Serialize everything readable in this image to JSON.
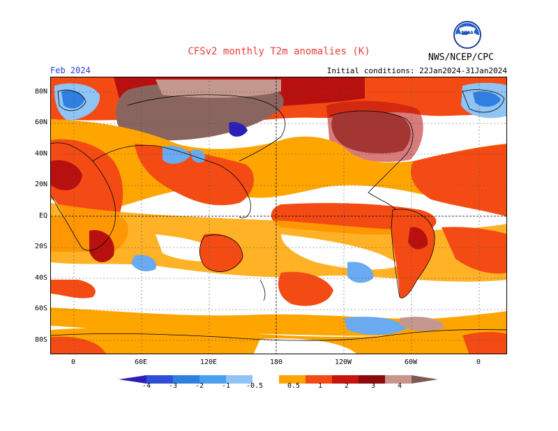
{
  "header": {
    "title": "CFSv2 monthly T2m anomalies (K)",
    "month": "Feb 2024",
    "initial_conditions": "Initial conditions: 22Jan2024-31Jan2024",
    "agency": "NWS/NCEP/CPC",
    "logo_text": "NOAA"
  },
  "map": {
    "lat_labels": [
      "80N",
      "60N",
      "40N",
      "20N",
      "EQ",
      "20S",
      "40S",
      "60S",
      "80S"
    ],
    "lon_labels": [
      "0",
      "60E",
      "120E",
      "180",
      "120W",
      "60W",
      "0"
    ]
  },
  "legend": {
    "labels": [
      "-4",
      "-3",
      "-2",
      "-1",
      "-0.5",
      "0.5",
      "1",
      "2",
      "3",
      "4"
    ],
    "colors": [
      "#2a20b8",
      "#2f4fd6",
      "#2f7fe0",
      "#4aa0ee",
      "#8fc4f4",
      "#ffffff",
      "#ffa500",
      "#f44b14",
      "#c7140f",
      "#8c0a0a",
      "#c7958a",
      "#7d5a52"
    ]
  },
  "colors": {
    "title_red": "#e8403a",
    "month_blue": "#2a3fd1",
    "warm_orange": "#ffa500",
    "warm_red": "#f44b14",
    "dark_red": "#b80f0f",
    "brown": "#8a6560",
    "light_brown": "#c4988e",
    "cool_blue": "#6aaaf0"
  }
}
